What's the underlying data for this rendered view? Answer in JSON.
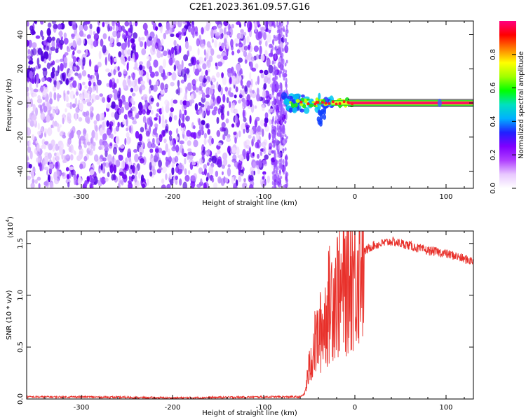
{
  "title": "C2E1.2023.361.09.57.G16",
  "chart_data": [
    {
      "type": "heatmap",
      "xlabel": "Height of straight line (km)",
      "ylabel": "Frequency (Hz)",
      "xlim": [
        -360,
        130
      ],
      "ylim": [
        -50,
        48
      ],
      "x_ticks": [
        -300,
        -200,
        -100,
        0,
        100
      ],
      "y_ticks": [
        -40,
        -20,
        0,
        20,
        40
      ],
      "grid": false,
      "noise_region_x": [
        -360,
        -75
      ],
      "signal_onset_x": -72,
      "signal_center_freq": 0,
      "colorbar": {
        "label": "Normalized spectral amplitude",
        "range": [
          0.0,
          1.0
        ],
        "ticks": [
          0.0,
          0.2,
          0.4,
          0.6,
          0.8
        ],
        "colors": [
          "#ffffff",
          "#e8c8ff",
          "#b040ff",
          "#8000ff",
          "#2020ff",
          "#00b0ff",
          "#00e0c0",
          "#00ff00",
          "#a0ff00",
          "#ffff00",
          "#ff8000",
          "#ff0000",
          "#ff0080"
        ]
      }
    },
    {
      "type": "line",
      "xlabel": "Height of straight line (km)",
      "ylabel": "SNR (10 * v/v)",
      "yscale_label": "(x10",
      "yscale_exp": "4",
      "yscale_close": ")",
      "xlim": [
        -360,
        130
      ],
      "ylim": [
        0,
        1.62
      ],
      "x_ticks": [
        -300,
        -200,
        -100,
        0,
        100
      ],
      "y_ticks": [
        "0.0",
        "0.5",
        "1.0",
        "1.5"
      ],
      "grid": false,
      "color": "#e8302a",
      "series": [
        {
          "x": [
            -360,
            -300,
            -200,
            -100,
            -60,
            -55,
            -50,
            -45,
            -40,
            -35,
            -30,
            -25,
            -20,
            -15,
            -10,
            -5,
            0,
            5,
            10,
            20,
            30,
            40,
            50,
            60,
            70,
            80,
            90,
            100,
            110,
            120,
            130
          ],
          "y": [
            0.02,
            0.02,
            0.01,
            0.02,
            0.02,
            0.05,
            0.3,
            0.5,
            0.6,
            0.7,
            0.85,
            1.0,
            1.05,
            1.0,
            1.1,
            1.25,
            1.2,
            1.35,
            1.42,
            1.48,
            1.5,
            1.52,
            1.5,
            1.48,
            1.45,
            1.43,
            1.42,
            1.4,
            1.38,
            1.35,
            1.33
          ]
        }
      ]
    }
  ]
}
